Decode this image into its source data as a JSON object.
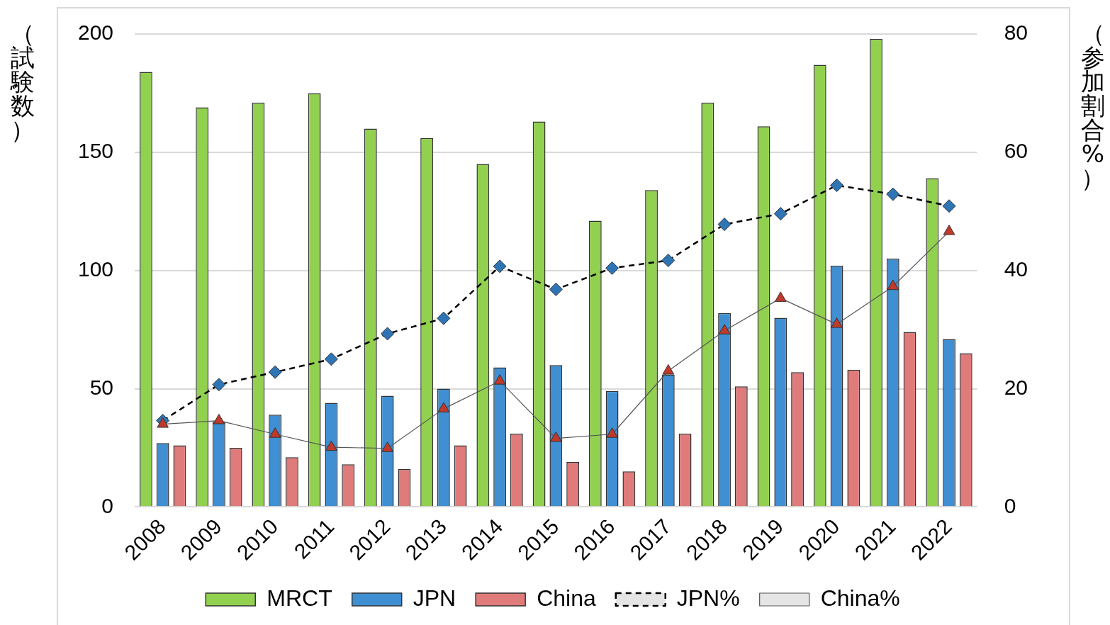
{
  "chart_data": {
    "type": "bar",
    "ylabel": "（試験数）",
    "y2label": "（参加割合%）",
    "categories": [
      "2008",
      "2009",
      "2010",
      "2011",
      "2012",
      "2013",
      "2014",
      "2015",
      "2016",
      "2017",
      "2018",
      "2019",
      "2020",
      "2021",
      "2022"
    ],
    "series": [
      {
        "name": "MRCT",
        "color": "#92d050",
        "values": [
          184,
          169,
          171,
          175,
          160,
          156,
          145,
          163,
          121,
          134,
          171,
          161,
          187,
          198,
          139
        ]
      },
      {
        "name": "JPN",
        "color": "#3f8fd2",
        "values": [
          27,
          36,
          39,
          44,
          47,
          50,
          59,
          60,
          49,
          56,
          82,
          80,
          102,
          105,
          71
        ]
      },
      {
        "name": "China",
        "color": "#e07b7b",
        "values": [
          26,
          25,
          21,
          18,
          16,
          26,
          31,
          19,
          15,
          31,
          51,
          57,
          58,
          74,
          65
        ]
      },
      {
        "name": "JPN%",
        "type": "line",
        "axis": "y2",
        "color": "#2e75b6",
        "marker": "diamond",
        "line_style": "dashed",
        "values": [
          14.6,
          20.7,
          22.8,
          25.0,
          29.3,
          31.9,
          40.7,
          36.8,
          40.4,
          41.7,
          47.8,
          49.6,
          54.4,
          52.9,
          50.9
        ]
      },
      {
        "name": "China%",
        "type": "line",
        "axis": "y2",
        "color": "#c0392b",
        "marker": "triangle",
        "line_style": "solid",
        "values": [
          14.0,
          14.6,
          12.3,
          10.1,
          9.9,
          16.6,
          21.3,
          11.6,
          12.3,
          23.0,
          29.8,
          35.3,
          30.9,
          37.3,
          46.6
        ]
      }
    ],
    "ylim": [
      0,
      200
    ],
    "yticks": [
      0,
      50,
      100,
      150,
      200
    ],
    "y2lim": [
      0,
      80
    ],
    "y2ticks": [
      0,
      20,
      40,
      60,
      80
    ],
    "grid": "y",
    "legend": "bottom"
  }
}
